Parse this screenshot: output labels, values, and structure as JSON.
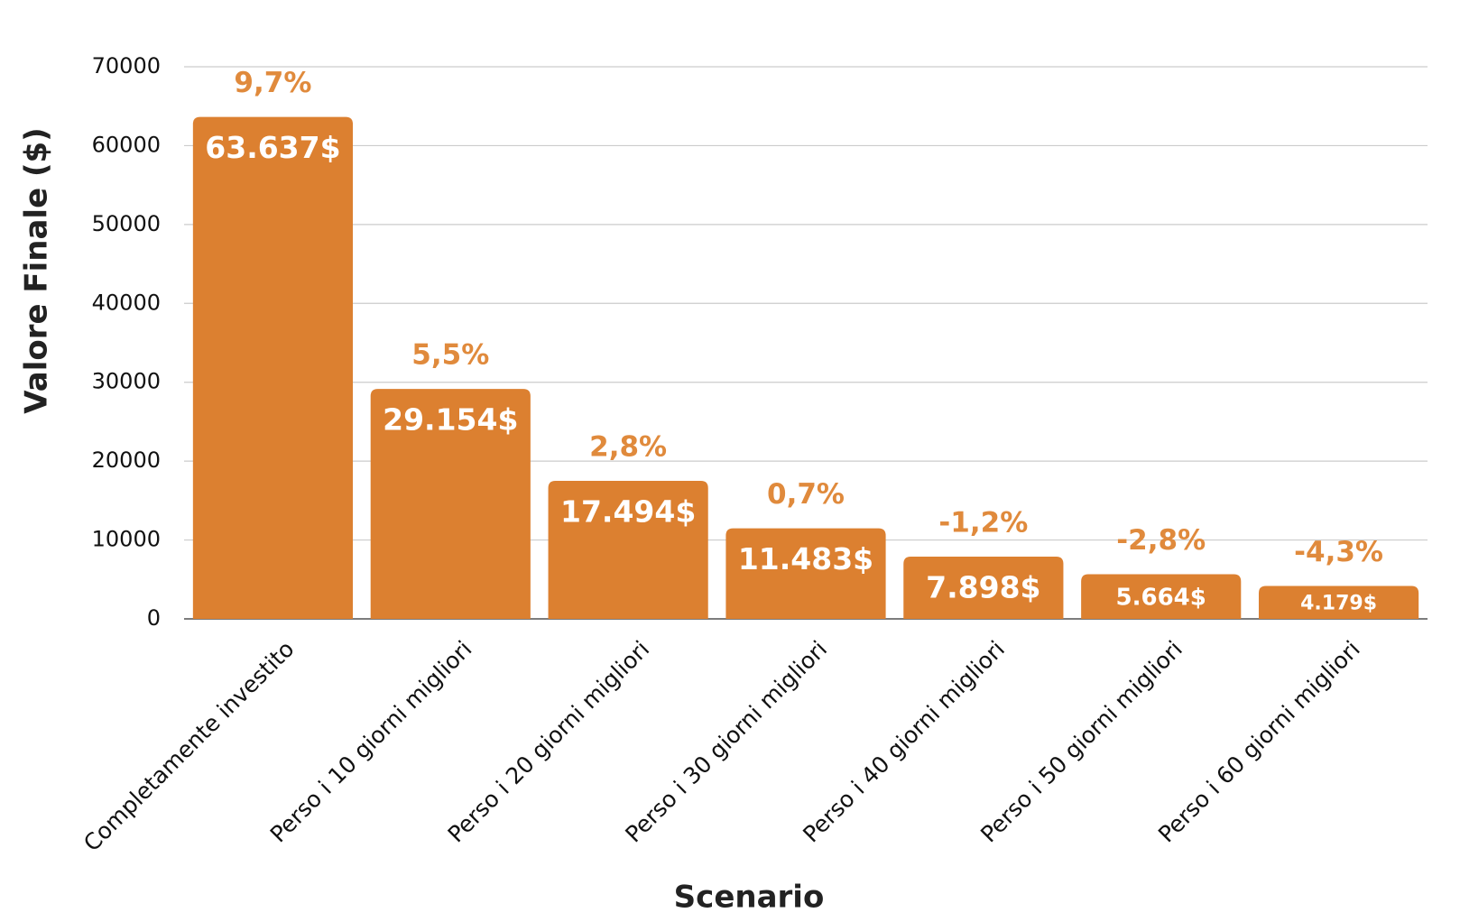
{
  "chart_data": {
    "type": "bar",
    "x_label": "Scenario",
    "y_label": "Valore Finale ($)",
    "categories": [
      "Completamente investito",
      "Perso i 10 giorni migliori",
      "Perso i 20 giorni migliori",
      "Perso i 30 giorni migliori",
      "Perso i 40 giorni migliori",
      "Perso i 50 giorni migliori",
      "Perso i 60 giorni migliori"
    ],
    "values": [
      63637,
      29154,
      17494,
      11483,
      7898,
      5664,
      4179
    ],
    "value_labels": [
      "63.637$",
      "29.154$",
      "17.494$",
      "11.483$",
      "7.898$",
      "5.664$",
      "4.179$"
    ],
    "annotations": [
      "9,7%",
      "5,5%",
      "2,8%",
      "0,7%",
      "-1,2%",
      "-2,8%",
      "-4,3%"
    ],
    "color": "#dc8030",
    "ylim": [
      0,
      70000
    ],
    "yticks": [
      0,
      10000,
      20000,
      30000,
      40000,
      50000,
      60000,
      70000
    ],
    "grid": true
  }
}
